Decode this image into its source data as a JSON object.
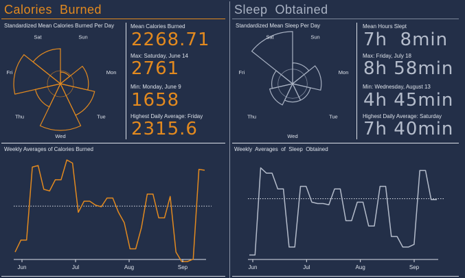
{
  "colors": {
    "background": "#232f48",
    "calories_accent": "#e38a1f",
    "sleep_accent": "#a9b2c3",
    "text": "#dde2ea"
  },
  "calories": {
    "title": "Calories  Burned",
    "radar_title": "Standardized Mean Calories Burned Per Day",
    "stats": [
      {
        "label": "Mean Calories Burned",
        "value": "2268.71"
      },
      {
        "label": "Max: Saturday, June 14",
        "value": "2761"
      },
      {
        "label": "Min: Monday, June 9",
        "value": "1658"
      },
      {
        "label": "Highest Daily Average: Friday",
        "value": "2315.6"
      }
    ],
    "line_title": "Weekly Averages of Calories Burned"
  },
  "sleep": {
    "title": "Sleep  Obtained",
    "radar_title": "Standardized Mean Sleep Per Day",
    "stats": [
      {
        "label": "Mean Hours Slept",
        "value": "7h  8min"
      },
      {
        "label": "Max: Friday, July 18",
        "value": "8h 58min"
      },
      {
        "label": "Min: Wednesday, August 13",
        "value": "4h 45min"
      },
      {
        "label": "Highest Daily Average: Saturday",
        "value": "7h 40min"
      }
    ],
    "line_title": "Weekly  Averages  of  Sleep  Obtained"
  },
  "chart_data": [
    {
      "type": "radar",
      "title": "Standardized Mean Calories Burned Per Day",
      "categories": [
        "Sun",
        "Mon",
        "Tue",
        "Wed",
        "Thu",
        "Fri",
        "Sat"
      ],
      "values": [
        0.25,
        0.6,
        0.75,
        1.0,
        0.55,
        1.0,
        0.75
      ]
    },
    {
      "type": "line",
      "title": "Weekly Averages of Calories Burned",
      "x_ticks": [
        "Jun",
        "Jul",
        "Aug",
        "Sep"
      ],
      "values": [
        1690,
        1840,
        1840,
        2760,
        2780,
        2480,
        2460,
        2600,
        2600,
        2850,
        2810,
        2190,
        2330,
        2330,
        2280,
        2260,
        2370,
        2370,
        2190,
        2060,
        1730,
        1730,
        2000,
        2420,
        2420,
        2120,
        2120,
        2390,
        1690,
        1570,
        1570,
        1600,
        2730,
        2720
      ],
      "reference_line": 2268.71,
      "reference_style": "dotted"
    },
    {
      "type": "radar",
      "title": "Standardized Mean Sleep Per Day",
      "categories": [
        "Sun",
        "Mon",
        "Tue",
        "Wed",
        "Thu",
        "Fri",
        "Sat"
      ],
      "values": [
        0.4,
        0.55,
        0.35,
        0.35,
        0.45,
        0.4,
        1.0
      ]
    },
    {
      "type": "line",
      "title": "Weekly  Averages  of  Sleep  Obtained",
      "x_ticks": [
        "Jun",
        "Jul",
        "Aug",
        "Sep"
      ],
      "values": [
        5.0,
        5.0,
        8.3,
        8.1,
        8.1,
        7.5,
        7.5,
        5.3,
        5.3,
        7.6,
        7.6,
        7.0,
        6.95,
        6.95,
        6.9,
        7.5,
        7.5,
        6.3,
        6.3,
        7.0,
        7.0,
        6.1,
        6.1,
        7.6,
        7.6,
        5.7,
        5.7,
        5.3,
        5.3,
        5.4,
        8.2,
        8.2,
        7.1,
        7.1
      ],
      "reference_line": 7.13,
      "reference_style": "dotted"
    }
  ]
}
